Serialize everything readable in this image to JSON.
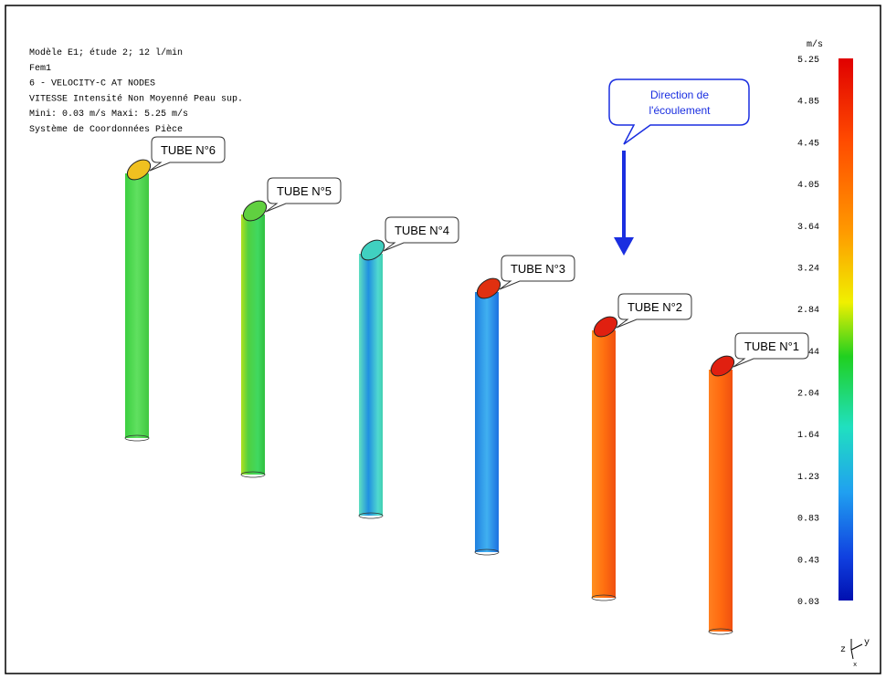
{
  "header": {
    "lines": [
      "Modèle E1; étude 2; 12 l/min",
      "Fem1",
      "6 - VELOCITY-C AT NODES",
      "VITESSE  Intensité  Non Moyenné  Peau sup.",
      "Mini: 0.03 m/s  Maxi: 5.25 m/s",
      "Système de Coordonnées Pièce"
    ]
  },
  "colorbar": {
    "unit": "m/s",
    "ticks": [
      "5.25",
      "4.85",
      "4.45",
      "4.05",
      "3.64",
      "3.24",
      "2.84",
      "2.44",
      "2.04",
      "1.64",
      "1.23",
      "0.83",
      "0.43",
      "0.03"
    ]
  },
  "tubes": [
    {
      "label": "TUBE N°6"
    },
    {
      "label": "TUBE N°5"
    },
    {
      "label": "TUBE N°4"
    },
    {
      "label": "TUBE N°3"
    },
    {
      "label": "TUBE N°2"
    },
    {
      "label": "TUBE N°1"
    }
  ],
  "callout": {
    "lines": [
      "Direction de",
      "l'écoulement"
    ]
  },
  "triad": {
    "labels": [
      "z",
      "y",
      "x"
    ]
  }
}
